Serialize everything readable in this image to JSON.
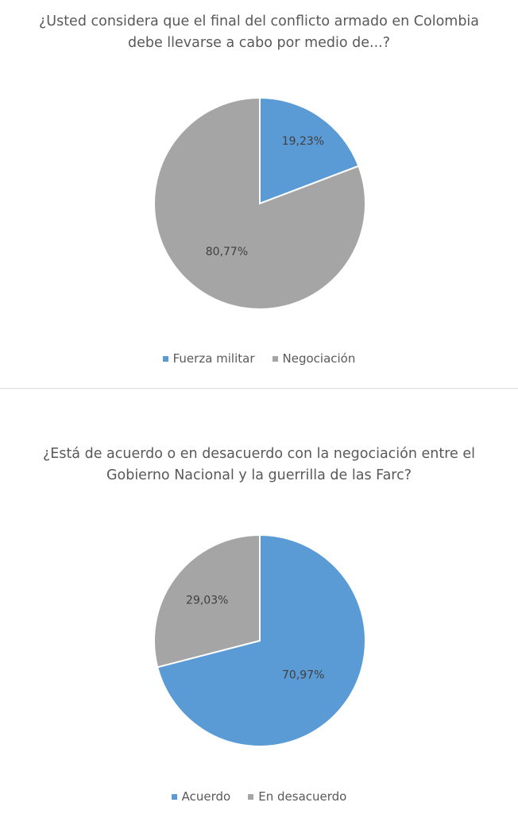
{
  "chart_data": [
    {
      "type": "pie",
      "title": [
        "¿Usted considera que el final del conflicto armado en Colombia",
        "debe llevarse a cabo por medio de...?"
      ],
      "categories": [
        "Fuerza militar",
        "Negociación"
      ],
      "values": [
        19.23,
        80.77
      ],
      "labels": [
        "19,23%",
        "80,77%"
      ],
      "colors": [
        "#5b9bd5",
        "#a5a5a5"
      ],
      "legend": "bottom"
    },
    {
      "type": "pie",
      "title": [
        "¿Está de acuerdo o en desacuerdo con la negociación entre el",
        "Gobierno Nacional y la guerrilla de las Farc?"
      ],
      "categories": [
        "Acuerdo",
        "En desacuerdo"
      ],
      "values": [
        70.97,
        29.03
      ],
      "labels": [
        "70,97%",
        "29,03%"
      ],
      "colors": [
        "#5b9bd5",
        "#a5a5a5"
      ],
      "legend": "bottom"
    }
  ]
}
